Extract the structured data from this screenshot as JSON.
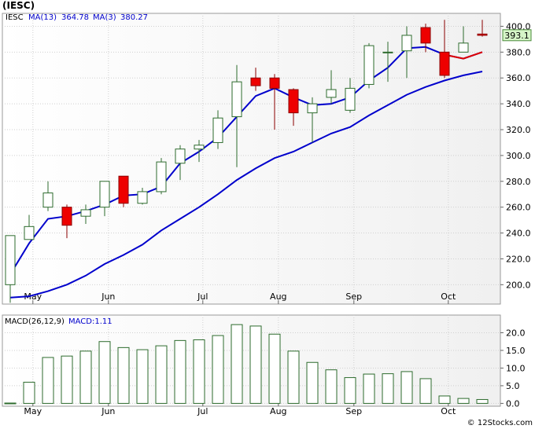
{
  "chart_data": [
    {
      "type": "candlestick",
      "title": "(IESC)",
      "legend": [
        {
          "name": "IESC",
          "color": "#000000"
        },
        {
          "name": "MA(13)",
          "value": "364.78",
          "color": "#0000cc"
        },
        {
          "name": "MA(3)",
          "value": "380.27",
          "color": "#0000cc"
        }
      ],
      "last_price_label": "393.1",
      "last_price": 393.1,
      "ylim": [
        185,
        410
      ],
      "y_ticks": [
        "200.0",
        "220.0",
        "240.0",
        "260.0",
        "280.0",
        "300.0",
        "320.0",
        "340.0",
        "360.0",
        "380.0",
        "400.0"
      ],
      "x_ticks": [
        "May",
        "Jun",
        "Jul",
        "Aug",
        "Sep",
        "Oct"
      ],
      "x_tick_index": [
        1.2,
        5.2,
        10.2,
        14.2,
        18.2,
        23.2
      ],
      "candles": [
        {
          "o": 200,
          "h": 238,
          "l": 186,
          "c": 238,
          "dir": "up"
        },
        {
          "o": 235,
          "h": 254,
          "l": 235,
          "c": 245,
          "dir": "up"
        },
        {
          "o": 260,
          "h": 280,
          "l": 257,
          "c": 271,
          "dir": "up"
        },
        {
          "o": 260,
          "h": 262,
          "l": 236,
          "c": 246,
          "dir": "down"
        },
        {
          "o": 253,
          "h": 262,
          "l": 247,
          "c": 258,
          "dir": "up"
        },
        {
          "o": 260,
          "h": 280,
          "l": 253,
          "c": 280,
          "dir": "up"
        },
        {
          "o": 284,
          "h": 284,
          "l": 260,
          "c": 263,
          "dir": "down"
        },
        {
          "o": 263,
          "h": 275,
          "l": 262,
          "c": 272,
          "dir": "up"
        },
        {
          "o": 272,
          "h": 298,
          "l": 270,
          "c": 295,
          "dir": "up"
        },
        {
          "o": 294,
          "h": 308,
          "l": 281,
          "c": 305,
          "dir": "up"
        },
        {
          "o": 305,
          "h": 312,
          "l": 295,
          "c": 308,
          "dir": "up"
        },
        {
          "o": 310,
          "h": 335,
          "l": 305,
          "c": 329,
          "dir": "up"
        },
        {
          "o": 330,
          "h": 370,
          "l": 291,
          "c": 357,
          "dir": "up"
        },
        {
          "o": 360,
          "h": 368,
          "l": 350,
          "c": 354,
          "dir": "down"
        },
        {
          "o": 360,
          "h": 363,
          "l": 320,
          "c": 352,
          "dir": "down"
        },
        {
          "o": 351,
          "h": 352,
          "l": 323,
          "c": 333,
          "dir": "down"
        },
        {
          "o": 333,
          "h": 345,
          "l": 310,
          "c": 340,
          "dir": "up"
        },
        {
          "o": 345,
          "h": 366,
          "l": 340,
          "c": 351,
          "dir": "up"
        },
        {
          "o": 335,
          "h": 360,
          "l": 333,
          "c": 352,
          "dir": "up"
        },
        {
          "o": 355,
          "h": 387,
          "l": 352,
          "c": 385,
          "dir": "up"
        },
        {
          "o": 380,
          "h": 388,
          "l": 357,
          "c": 380,
          "dir": "up"
        },
        {
          "o": 381,
          "h": 400,
          "l": 360,
          "c": 393,
          "dir": "up"
        },
        {
          "o": 399,
          "h": 402,
          "l": 380,
          "c": 387,
          "dir": "down"
        },
        {
          "o": 380,
          "h": 405,
          "l": 360,
          "c": 362,
          "dir": "down"
        },
        {
          "o": 380,
          "h": 400,
          "l": 380,
          "c": 387,
          "dir": "up"
        },
        {
          "o": 394,
          "h": 405,
          "l": 392,
          "c": 393,
          "dir": "down"
        }
      ],
      "series": [
        {
          "name": "MA(3)",
          "color": "#0000cc",
          "values": [
            208,
            232,
            251,
            253,
            257,
            262,
            269,
            270,
            276,
            294,
            303,
            314,
            330,
            346,
            352,
            345,
            339,
            340,
            345,
            358,
            368,
            383,
            384,
            378,
            375,
            380
          ]
        },
        {
          "name": "MA(13)",
          "color": "#0000cc",
          "values": [
            190,
            191,
            195,
            200,
            207,
            216,
            223,
            231,
            242,
            251,
            260,
            270,
            281,
            290,
            298,
            303,
            310,
            317,
            322,
            331,
            339,
            347,
            353,
            358,
            362,
            365
          ]
        }
      ]
    },
    {
      "type": "bar",
      "title": "MACD(26,12,9)",
      "legend": [
        {
          "name": "MACD",
          "value": "1.11",
          "color": "#0000cc"
        }
      ],
      "ylim": [
        -0.8,
        25
      ],
      "y_ticks": [
        "0.0",
        "5.0",
        "10.0",
        "15.0",
        "20.0"
      ],
      "x_ticks": [
        "May",
        "Jun",
        "Jul",
        "Aug",
        "Sep",
        "Oct"
      ],
      "x_tick_index": [
        1.2,
        5.2,
        10.2,
        14.2,
        18.2,
        23.2
      ],
      "values": [
        0.1,
        6.0,
        13.0,
        13.4,
        14.8,
        17.5,
        15.8,
        15.2,
        16.3,
        17.8,
        18.0,
        19.2,
        22.3,
        21.9,
        19.6,
        14.8,
        11.6,
        9.5,
        7.3,
        8.3,
        8.4,
        9.0,
        7.0,
        2.1,
        1.4,
        1.1
      ]
    }
  ],
  "footer": "© 12Stocks.com"
}
